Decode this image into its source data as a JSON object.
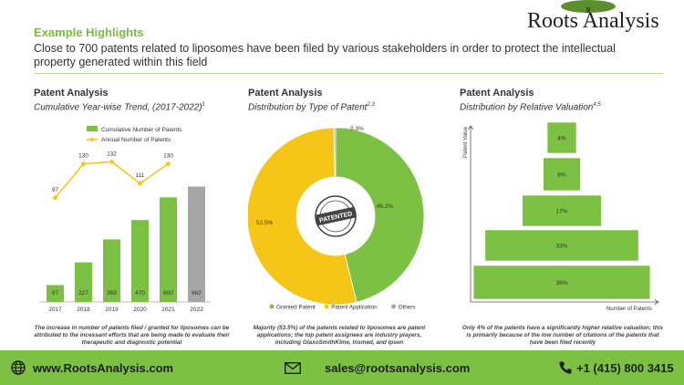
{
  "header": {
    "kicker": "Example Highlights",
    "headline": "Close to 700 patents related to liposomes have been filed by various stakeholders in order to protect the intellectual property generated within this field",
    "logo_text": "Roots Analysis",
    "logo_icon": "tree-icon"
  },
  "panels": [
    {
      "title": "Patent Analysis",
      "subtitle": "Cumulative Year-wise Trend, (2017-2022)",
      "footnote": "1",
      "caption": "The increase in number of patents filed / granted for liposomes can be attributed to the incessant efforts that are being made to evaluate their therapeutic and diagnostic potential"
    },
    {
      "title": "Patent Analysis",
      "subtitle": "Distribution by Type of Patent",
      "footnote": "2,3",
      "caption": "Majority (53.5%) of the patents related to liposomes are patent applications; the top patent assignees are industry players, including GlaxoSmithKline, Insmed, and Ipsen"
    },
    {
      "title": "Patent Analysis",
      "subtitle": "Distribution by Relative Valuation",
      "footnote": "4,5",
      "caption": "Only 4% of the patents have a significantly higher relative valuation; this is primarily because of the low number of citations of the patents that have been filed recently"
    }
  ],
  "chart_data": [
    {
      "type": "bar",
      "categories": [
        "2017",
        "2018",
        "2019",
        "2020",
        "2021",
        "2022"
      ],
      "series": [
        {
          "name": "Cumulative Number of Patents",
          "type": "bar",
          "values": [
            97,
            227,
            359,
            470,
            600,
            662
          ],
          "colors": [
            "#7cc143",
            "#7cc143",
            "#7cc143",
            "#7cc143",
            "#7cc143",
            "#a6a6a6"
          ]
        },
        {
          "name": "Annual Number of Patents",
          "type": "line",
          "values": [
            97,
            130,
            132,
            111,
            130,
            null
          ],
          "color": "#f5c518"
        }
      ],
      "legend": "top-left",
      "grid": false
    },
    {
      "type": "pie",
      "donut": true,
      "center_badge": "PATENTED",
      "labels": [
        "Granted Patent",
        "Patent Application",
        "Others"
      ],
      "values": [
        46.2,
        53.5,
        0.3
      ],
      "value_labels": [
        "46.2%",
        "53.5%",
        "0.3%"
      ],
      "colors": [
        "#7cc143",
        "#f5c518",
        "#a6a6a6"
      ],
      "legend": "bottom"
    },
    {
      "type": "bar",
      "orientation": "pyramid",
      "ylabel": "Patent Value",
      "xlabel": "Number of Patents",
      "categories": [
        "4%",
        "8%",
        "17%",
        "33%",
        "38%"
      ],
      "values": [
        4,
        8,
        17,
        33,
        38
      ],
      "color": "#7cc143"
    }
  ],
  "footer": {
    "website": "www.RootsAnalysis.com",
    "email": "sales@rootsanalysis.com",
    "phone": "+1 (415) 800 3415"
  }
}
